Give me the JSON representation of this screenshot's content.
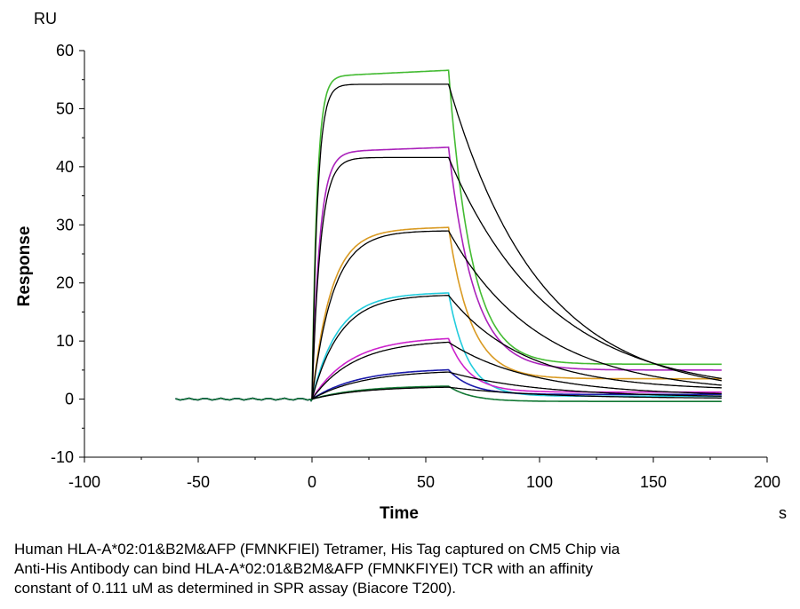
{
  "chart_data": {
    "type": "line",
    "y_unit": "RU",
    "x_unit": "s",
    "ylabel": "Response",
    "xlabel": "Time",
    "xlim": [
      -100,
      200
    ],
    "ylim": [
      -10,
      60
    ],
    "x_ticks": [
      -100,
      -50,
      0,
      50,
      100,
      150,
      200
    ],
    "y_ticks": [
      -10,
      0,
      10,
      20,
      30,
      40,
      50,
      60
    ],
    "grid": false,
    "legend": "none",
    "baseline": {
      "x": [
        -60,
        0
      ],
      "y": [
        0,
        0
      ]
    },
    "association": {
      "start": 0,
      "end": 60
    },
    "dissociation": {
      "start": 60,
      "end": 180
    },
    "curves": [
      {
        "color": "#44bb33",
        "fit_color": "#000000",
        "peak": 55.5,
        "fit_peak": 54.2,
        "assoc_rate": 0.45,
        "end": 6.0,
        "fit_end": 0.5,
        "diss_rate": 0.1
      },
      {
        "color": "#aa22bb",
        "fit_color": "#000000",
        "peak": 42.5,
        "fit_peak": 41.6,
        "assoc_rate": 0.3,
        "end": 5.0,
        "fit_end": 0.8,
        "diss_rate": 0.09
      },
      {
        "color": "#d99a22",
        "fit_color": "#000000",
        "peak": 29.0,
        "fit_peak": 29.0,
        "assoc_rate": 0.12,
        "end": 3.5,
        "fit_end": 1.0,
        "diss_rate": 0.1
      },
      {
        "color": "#22ccdd",
        "fit_color": "#000000",
        "peak": 18.0,
        "fit_peak": 18.0,
        "assoc_rate": 0.09,
        "end": 0.5,
        "fit_end": 1.5,
        "diss_rate": 0.12
      },
      {
        "color": "#cc22cc",
        "fit_color": "#000000",
        "peak": 10.5,
        "fit_peak": 10.2,
        "assoc_rate": 0.06,
        "end": 1.2,
        "fit_end": 0.6,
        "diss_rate": 0.11
      },
      {
        "color": "#1a1aaa",
        "fit_color": "#000000",
        "peak": 5.2,
        "fit_peak": 5.0,
        "assoc_rate": 0.05,
        "end": 0.8,
        "fit_end": 0.3,
        "diss_rate": 0.1
      },
      {
        "color": "#117733",
        "fit_color": "#000000",
        "peak": 2.3,
        "fit_peak": 2.2,
        "assoc_rate": 0.05,
        "end": -0.4,
        "fit_end": 0.1,
        "diss_rate": 0.1
      }
    ],
    "caption": [
      "Human HLA-A*02:01&B2M&AFP (FMNKFIEl) Tetramer, His Tag captured on CM5 Chip via",
      "Anti-His Antibody can bind HLA-A*02:01&B2M&AFP (FMNKFIYEI) TCR with an affinity",
      "constant of 0.111 uM as determined in SPR assay (Biacore T200)."
    ]
  }
}
